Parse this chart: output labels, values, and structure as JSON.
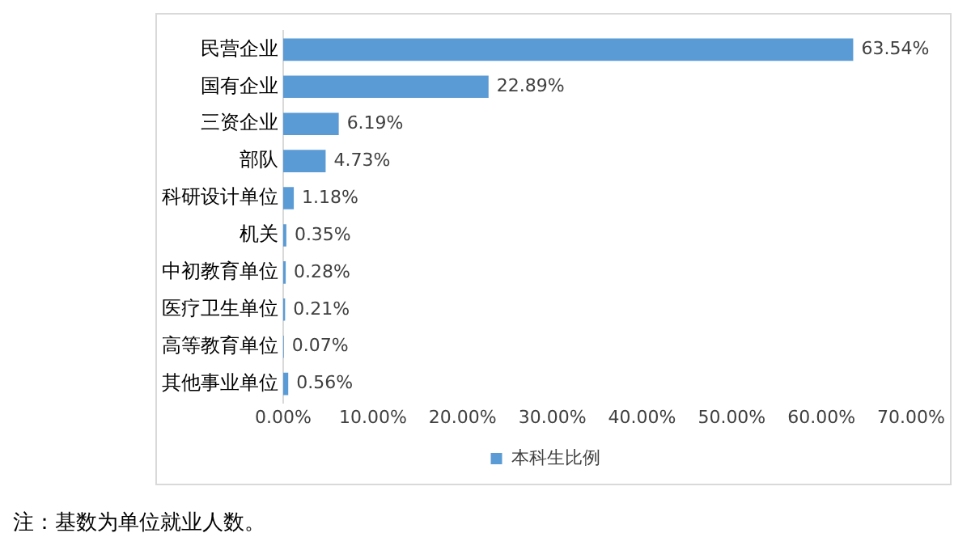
{
  "chart_data": {
    "type": "bar",
    "orientation": "horizontal",
    "categories": [
      "民营企业",
      "国有企业",
      "三资企业",
      "部队",
      "科研设计单位",
      "机关",
      "中初教育单位",
      "医疗卫生单位",
      "高等教育单位",
      "其他事业单位"
    ],
    "series": [
      {
        "name": "本科生比例",
        "color": "#5b9bd5",
        "values": [
          63.54,
          22.89,
          6.19,
          4.73,
          1.18,
          0.35,
          0.28,
          0.21,
          0.07,
          0.56
        ],
        "value_labels": [
          "63.54%",
          "22.89%",
          "6.19%",
          "4.73%",
          "1.18%",
          "0.35%",
          "0.28%",
          "0.21%",
          "0.07%",
          "0.56%"
        ]
      }
    ],
    "xlim": [
      0,
      70
    ],
    "xticks": [
      {
        "value": 0,
        "label": "0.00%"
      },
      {
        "value": 10,
        "label": "10.00%"
      },
      {
        "value": 20,
        "label": "20.00%"
      },
      {
        "value": 30,
        "label": "30.00%"
      },
      {
        "value": 40,
        "label": "40.00%"
      },
      {
        "value": 50,
        "label": "50.00%"
      },
      {
        "value": 60,
        "label": "60.00%"
      },
      {
        "value": 70,
        "label": "70.00%"
      }
    ],
    "grid": false,
    "legend": "bottom",
    "annotations": [
      "注：基数为单位就业人数。"
    ]
  }
}
